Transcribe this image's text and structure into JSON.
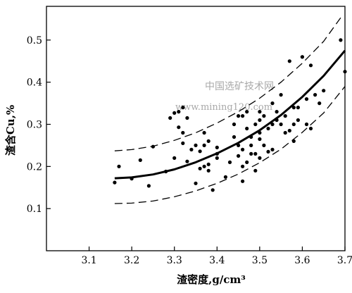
{
  "chart_data": {
    "type": "scatter",
    "xlabel": "渣密度,g/cm³",
    "ylabel": "渣含Cu,%",
    "xlim": [
      3.0,
      3.7
    ],
    "ylim": [
      0.0,
      0.58
    ],
    "xticks": [
      "3.1",
      "3.2",
      "3.3",
      "3.4",
      "3.5",
      "3.6",
      "3.7"
    ],
    "xtick_values": [
      3.1,
      3.2,
      3.3,
      3.4,
      3.5,
      3.6,
      3.7
    ],
    "yticks": [
      "0.1",
      "0.2",
      "0.3",
      "0.4",
      "0.5"
    ],
    "ytick_values": [
      0.1,
      0.2,
      0.3,
      0.4,
      0.5
    ],
    "grid": false,
    "legend": "none",
    "watermark_lines": [
      "中国选矿技术网",
      "www.mining120.com"
    ],
    "points": [
      [
        3.16,
        0.162
      ],
      [
        3.17,
        0.2
      ],
      [
        3.2,
        0.171
      ],
      [
        3.22,
        0.215
      ],
      [
        3.24,
        0.154
      ],
      [
        3.25,
        0.247
      ],
      [
        3.28,
        0.188
      ],
      [
        3.29,
        0.315
      ],
      [
        3.3,
        0.22
      ],
      [
        3.3,
        0.327
      ],
      [
        3.31,
        0.293
      ],
      [
        3.31,
        0.33
      ],
      [
        3.32,
        0.34
      ],
      [
        3.32,
        0.28
      ],
      [
        3.32,
        0.255
      ],
      [
        3.33,
        0.212
      ],
      [
        3.33,
        0.315
      ],
      [
        3.34,
        0.24
      ],
      [
        3.35,
        0.16
      ],
      [
        3.35,
        0.25
      ],
      [
        3.36,
        0.195
      ],
      [
        3.36,
        0.236
      ],
      [
        3.37,
        0.2
      ],
      [
        3.37,
        0.28
      ],
      [
        3.37,
        0.25
      ],
      [
        3.38,
        0.19
      ],
      [
        3.38,
        0.205
      ],
      [
        3.38,
        0.26
      ],
      [
        3.39,
        0.144
      ],
      [
        3.4,
        0.22
      ],
      [
        3.4,
        0.245
      ],
      [
        3.4,
        0.23
      ],
      [
        3.42,
        0.175
      ],
      [
        3.43,
        0.21
      ],
      [
        3.44,
        0.27
      ],
      [
        3.44,
        0.3
      ],
      [
        3.45,
        0.225
      ],
      [
        3.45,
        0.25
      ],
      [
        3.45,
        0.32
      ],
      [
        3.46,
        0.2
      ],
      [
        3.46,
        0.24
      ],
      [
        3.46,
        0.32
      ],
      [
        3.47,
        0.21
      ],
      [
        3.47,
        0.29
      ],
      [
        3.47,
        0.33
      ],
      [
        3.48,
        0.23
      ],
      [
        3.48,
        0.27
      ],
      [
        3.48,
        0.25
      ],
      [
        3.49,
        0.3
      ],
      [
        3.49,
        0.19
      ],
      [
        3.49,
        0.23
      ],
      [
        3.5,
        0.31
      ],
      [
        3.5,
        0.22
      ],
      [
        3.5,
        0.265
      ],
      [
        3.5,
        0.28
      ],
      [
        3.5,
        0.33
      ],
      [
        3.51,
        0.32
      ],
      [
        3.51,
        0.25
      ],
      [
        3.52,
        0.235
      ],
      [
        3.52,
        0.29
      ],
      [
        3.53,
        0.35
      ],
      [
        3.53,
        0.3
      ],
      [
        3.53,
        0.24
      ],
      [
        3.54,
        0.31
      ],
      [
        3.54,
        0.33
      ],
      [
        3.55,
        0.37
      ],
      [
        3.55,
        0.3
      ],
      [
        3.56,
        0.32
      ],
      [
        3.56,
        0.28
      ],
      [
        3.57,
        0.45
      ],
      [
        3.57,
        0.285
      ],
      [
        3.58,
        0.26
      ],
      [
        3.58,
        0.3
      ],
      [
        3.58,
        0.34
      ],
      [
        3.59,
        0.31
      ],
      [
        3.59,
        0.34
      ],
      [
        3.6,
        0.46
      ],
      [
        3.6,
        0.46
      ],
      [
        3.61,
        0.36
      ],
      [
        3.61,
        0.3
      ],
      [
        3.62,
        0.44
      ],
      [
        3.62,
        0.29
      ],
      [
        3.63,
        0.37
      ],
      [
        3.64,
        0.35
      ],
      [
        3.65,
        0.38
      ],
      [
        3.69,
        0.5
      ],
      [
        3.7,
        0.425
      ],
      [
        3.46,
        0.165
      ]
    ],
    "fit_curve": [
      [
        3.16,
        0.172
      ],
      [
        3.2,
        0.174
      ],
      [
        3.25,
        0.181
      ],
      [
        3.3,
        0.193
      ],
      [
        3.35,
        0.21
      ],
      [
        3.4,
        0.231
      ],
      [
        3.45,
        0.256
      ],
      [
        3.5,
        0.286
      ],
      [
        3.55,
        0.322
      ],
      [
        3.6,
        0.365
      ],
      [
        3.65,
        0.415
      ],
      [
        3.7,
        0.475
      ]
    ],
    "upper_bound": [
      [
        3.16,
        0.237
      ],
      [
        3.2,
        0.24
      ],
      [
        3.25,
        0.248
      ],
      [
        3.3,
        0.262
      ],
      [
        3.35,
        0.28
      ],
      [
        3.4,
        0.303
      ],
      [
        3.45,
        0.33
      ],
      [
        3.5,
        0.362
      ],
      [
        3.55,
        0.4
      ],
      [
        3.6,
        0.445
      ],
      [
        3.65,
        0.497
      ],
      [
        3.69,
        0.553
      ]
    ],
    "lower_bound": [
      [
        3.16,
        0.112
      ],
      [
        3.2,
        0.113
      ],
      [
        3.25,
        0.118
      ],
      [
        3.3,
        0.128
      ],
      [
        3.35,
        0.142
      ],
      [
        3.4,
        0.16
      ],
      [
        3.45,
        0.182
      ],
      [
        3.5,
        0.209
      ],
      [
        3.55,
        0.241
      ],
      [
        3.6,
        0.281
      ],
      [
        3.65,
        0.327
      ],
      [
        3.7,
        0.39
      ]
    ]
  }
}
